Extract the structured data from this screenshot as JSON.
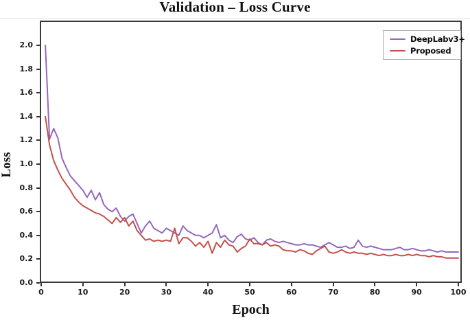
{
  "title": "Validation – Loss Curve",
  "axes": {
    "x_label": "Epoch",
    "y_label": "Loss"
  },
  "legend": {
    "position": "upper-right"
  },
  "colors": {
    "deeplab_line": "#9467bd",
    "proposed_line": "#c4504c",
    "plot_border": "#3a3a3a"
  },
  "chart_data": {
    "type": "line",
    "title": "Validation – Loss Curve",
    "xlabel": "Epoch",
    "ylabel": "Loss",
    "xlim": [
      0,
      100
    ],
    "ylim": [
      0.0,
      2.2
    ],
    "grid": false,
    "legend_position": "upper right",
    "x_ticks": [
      0,
      10,
      20,
      30,
      40,
      50,
      60,
      70,
      80,
      90,
      100
    ],
    "y_ticks": [
      "0.0",
      "0.2",
      "0.4",
      "0.6",
      "0.8",
      "1.0",
      "1.2",
      "1.4",
      "1.6",
      "1.8",
      "2.0"
    ],
    "x": [
      1,
      2,
      3,
      4,
      5,
      6,
      7,
      8,
      9,
      10,
      11,
      12,
      13,
      14,
      15,
      16,
      17,
      18,
      19,
      20,
      21,
      22,
      23,
      24,
      25,
      26,
      27,
      28,
      29,
      30,
      31,
      32,
      33,
      34,
      35,
      36,
      37,
      38,
      39,
      40,
      41,
      42,
      43,
      44,
      45,
      46,
      47,
      48,
      49,
      50,
      51,
      52,
      53,
      54,
      55,
      56,
      57,
      58,
      59,
      60,
      61,
      62,
      63,
      64,
      65,
      66,
      67,
      68,
      69,
      70,
      71,
      72,
      73,
      74,
      75,
      76,
      77,
      78,
      79,
      80,
      81,
      82,
      83,
      84,
      85,
      86,
      87,
      88,
      89,
      90,
      91,
      92,
      93,
      94,
      95,
      96,
      97,
      98,
      99,
      100
    ],
    "series": [
      {
        "name": "DeepLabv3+",
        "color": "#9467bd",
        "values": [
          2.0,
          1.21,
          1.3,
          1.22,
          1.05,
          0.97,
          0.9,
          0.86,
          0.82,
          0.78,
          0.72,
          0.78,
          0.7,
          0.76,
          0.66,
          0.62,
          0.6,
          0.63,
          0.56,
          0.52,
          0.56,
          0.58,
          0.5,
          0.42,
          0.48,
          0.52,
          0.46,
          0.44,
          0.42,
          0.46,
          0.44,
          0.42,
          0.4,
          0.48,
          0.44,
          0.42,
          0.4,
          0.4,
          0.38,
          0.4,
          0.42,
          0.49,
          0.38,
          0.4,
          0.36,
          0.34,
          0.39,
          0.41,
          0.37,
          0.36,
          0.38,
          0.34,
          0.32,
          0.36,
          0.37,
          0.35,
          0.34,
          0.35,
          0.34,
          0.33,
          0.32,
          0.32,
          0.33,
          0.32,
          0.32,
          0.31,
          0.3,
          0.32,
          0.34,
          0.32,
          0.3,
          0.3,
          0.31,
          0.29,
          0.3,
          0.36,
          0.31,
          0.3,
          0.31,
          0.3,
          0.29,
          0.28,
          0.28,
          0.28,
          0.29,
          0.3,
          0.28,
          0.28,
          0.29,
          0.28,
          0.27,
          0.27,
          0.28,
          0.27,
          0.26,
          0.27,
          0.26,
          0.26,
          0.26,
          0.26
        ]
      },
      {
        "name": "Proposed",
        "color": "#c4504c",
        "values": [
          1.4,
          1.16,
          1.03,
          0.95,
          0.88,
          0.83,
          0.78,
          0.72,
          0.68,
          0.65,
          0.63,
          0.61,
          0.59,
          0.58,
          0.56,
          0.53,
          0.5,
          0.55,
          0.51,
          0.55,
          0.48,
          0.52,
          0.44,
          0.4,
          0.36,
          0.37,
          0.35,
          0.36,
          0.35,
          0.36,
          0.35,
          0.46,
          0.33,
          0.38,
          0.38,
          0.35,
          0.31,
          0.34,
          0.3,
          0.35,
          0.25,
          0.34,
          0.3,
          0.36,
          0.32,
          0.31,
          0.26,
          0.29,
          0.31,
          0.37,
          0.33,
          0.33,
          0.32,
          0.34,
          0.31,
          0.32,
          0.31,
          0.28,
          0.27,
          0.27,
          0.26,
          0.28,
          0.27,
          0.25,
          0.24,
          0.27,
          0.29,
          0.31,
          0.26,
          0.25,
          0.26,
          0.28,
          0.26,
          0.25,
          0.26,
          0.25,
          0.25,
          0.24,
          0.25,
          0.24,
          0.23,
          0.24,
          0.23,
          0.23,
          0.24,
          0.23,
          0.23,
          0.24,
          0.23,
          0.24,
          0.23,
          0.23,
          0.22,
          0.23,
          0.22,
          0.22,
          0.21,
          0.21,
          0.21,
          0.21
        ]
      }
    ]
  }
}
